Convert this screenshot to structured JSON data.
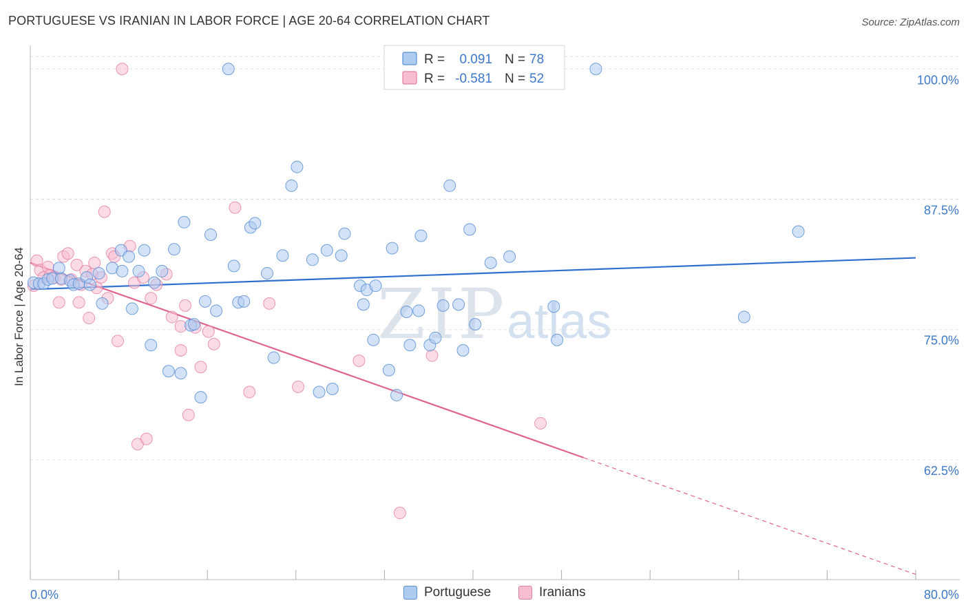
{
  "header": {
    "title": "PORTUGUESE VS IRANIAN IN LABOR FORCE | AGE 20-64 CORRELATION CHART",
    "source": "Source: ZipAtlas.com"
  },
  "watermark": {
    "zip": "ZIP",
    "atlas": "atlas"
  },
  "legend": {
    "rows": [
      {
        "r_label": "R =",
        "r_value": "0.091",
        "n_label": "N =",
        "n_value": "78",
        "color": "#6fa0e0"
      },
      {
        "r_label": "R =",
        "r_value": "-0.581",
        "n_label": "N =",
        "n_value": "52",
        "color": "#f08aab"
      }
    ]
  },
  "colors": {
    "portuguese_fill": "#aecbf0",
    "portuguese_stroke": "#5b8fd6",
    "portuguese_line": "#2f6fd0",
    "iranian_fill": "#f7bdd0",
    "iranian_stroke": "#e67ea1",
    "iranian_line": "#e0628f",
    "axis_text": "#3d78c8",
    "grid": "#dddddd"
  },
  "chart_data": {
    "type": "scatter",
    "title": "PORTUGUESE VS IRANIAN IN LABOR FORCE | AGE 20-64 CORRELATION CHART",
    "xlabel": "",
    "ylabel": "In Labor Force | Age 20-64",
    "xlim": [
      0,
      80
    ],
    "ylim": [
      51.0,
      102.0
    ],
    "x_tick_labels": [
      "0.0%",
      "80.0%"
    ],
    "y_ticks": [
      62.5,
      75.0,
      87.5,
      100.0
    ],
    "y_tick_labels": [
      "62.5%",
      "75.0%",
      "87.5%",
      "100.0%"
    ],
    "grid": true,
    "legend_position": "top-center",
    "series": [
      {
        "name": "Portuguese",
        "r": 0.091,
        "n": 78,
        "trend": {
          "x": [
            0,
            80
          ],
          "y": [
            78.85,
            81.88
          ]
        },
        "points": [
          [
            0.3,
            79.5
          ],
          [
            0.8,
            79.4
          ],
          [
            1.2,
            79.4
          ],
          [
            1.6,
            79.8
          ],
          [
            2.0,
            79.9
          ],
          [
            2.8,
            79.9
          ],
          [
            3.6,
            79.7
          ],
          [
            3.9,
            79.3
          ],
          [
            4.4,
            79.4
          ],
          [
            5.1,
            80.0
          ],
          [
            5.4,
            79.3
          ],
          [
            6.2,
            80.4
          ],
          [
            6.5,
            77.5
          ],
          [
            7.4,
            80.9
          ],
          [
            8.2,
            82.6
          ],
          [
            8.3,
            80.6
          ],
          [
            8.9,
            82.0
          ],
          [
            9.2,
            77.0
          ],
          [
            9.8,
            80.6
          ],
          [
            10.3,
            82.6
          ],
          [
            10.9,
            73.5
          ],
          [
            11.2,
            79.5
          ],
          [
            11.9,
            80.6
          ],
          [
            12.5,
            71.0
          ],
          [
            13.0,
            82.7
          ],
          [
            13.6,
            70.8
          ],
          [
            13.9,
            85.3
          ],
          [
            14.5,
            75.4
          ],
          [
            14.8,
            75.5
          ],
          [
            15.4,
            68.5
          ],
          [
            15.8,
            77.7
          ],
          [
            16.3,
            84.1
          ],
          [
            16.8,
            76.8
          ],
          [
            17.9,
            100.0
          ],
          [
            18.4,
            81.1
          ],
          [
            18.8,
            77.6
          ],
          [
            19.3,
            77.7
          ],
          [
            19.9,
            84.8
          ],
          [
            20.3,
            85.2
          ],
          [
            21.4,
            80.4
          ],
          [
            22.0,
            72.3
          ],
          [
            22.8,
            82.1
          ],
          [
            23.6,
            88.8
          ],
          [
            24.1,
            90.6
          ],
          [
            25.5,
            81.7
          ],
          [
            26.1,
            69.0
          ],
          [
            26.8,
            82.6
          ],
          [
            27.3,
            69.3
          ],
          [
            28.1,
            82.1
          ],
          [
            28.4,
            84.2
          ],
          [
            29.8,
            79.2
          ],
          [
            30.1,
            77.4
          ],
          [
            30.4,
            78.8
          ],
          [
            31.0,
            74.0
          ],
          [
            31.2,
            79.2
          ],
          [
            32.4,
            71.1
          ],
          [
            32.7,
            82.8
          ],
          [
            33.1,
            68.7
          ],
          [
            34.0,
            76.7
          ],
          [
            34.3,
            73.5
          ],
          [
            35.1,
            76.8
          ],
          [
            35.3,
            84.0
          ],
          [
            36.1,
            73.5
          ],
          [
            36.6,
            74.2
          ],
          [
            37.3,
            77.3
          ],
          [
            37.9,
            88.8
          ],
          [
            38.7,
            77.4
          ],
          [
            39.1,
            73.0
          ],
          [
            39.7,
            84.6
          ],
          [
            40.2,
            75.5
          ],
          [
            41.6,
            81.4
          ],
          [
            43.3,
            82.0
          ],
          [
            47.3,
            77.2
          ],
          [
            47.6,
            74.0
          ],
          [
            51.1,
            100.0
          ],
          [
            64.5,
            76.2
          ],
          [
            69.4,
            84.4
          ],
          [
            2.6,
            80.9
          ]
        ]
      },
      {
        "name": "Iranians",
        "r": -0.581,
        "n": 52,
        "trend": {
          "x": [
            0,
            50
          ],
          "y": [
            81.4,
            62.7
          ],
          "dash_x": [
            50,
            80
          ],
          "dash_y": [
            62.7,
            51.5
          ]
        },
        "points": [
          [
            0.3,
            79.2
          ],
          [
            0.6,
            81.6
          ],
          [
            0.9,
            80.7
          ],
          [
            1.2,
            80.0
          ],
          [
            1.6,
            81.0
          ],
          [
            1.8,
            80.2
          ],
          [
            2.2,
            80.0
          ],
          [
            2.6,
            77.6
          ],
          [
            2.8,
            79.8
          ],
          [
            3.0,
            82.0
          ],
          [
            3.4,
            82.3
          ],
          [
            3.7,
            79.8
          ],
          [
            4.2,
            81.2
          ],
          [
            4.4,
            77.6
          ],
          [
            4.6,
            79.3
          ],
          [
            5.0,
            80.6
          ],
          [
            5.3,
            76.1
          ],
          [
            5.6,
            80.3
          ],
          [
            5.8,
            81.4
          ],
          [
            6.0,
            79.0
          ],
          [
            6.4,
            80.0
          ],
          [
            6.7,
            86.3
          ],
          [
            7.0,
            78.0
          ],
          [
            7.4,
            82.3
          ],
          [
            7.6,
            82.0
          ],
          [
            7.9,
            73.9
          ],
          [
            8.3,
            100.0
          ],
          [
            9.0,
            83.0
          ],
          [
            9.4,
            79.5
          ],
          [
            9.7,
            64.0
          ],
          [
            10.2,
            80.0
          ],
          [
            10.5,
            64.5
          ],
          [
            10.9,
            78.0
          ],
          [
            11.4,
            79.3
          ],
          [
            12.3,
            80.3
          ],
          [
            12.8,
            76.2
          ],
          [
            13.6,
            73.0
          ],
          [
            14.0,
            77.3
          ],
          [
            14.3,
            66.8
          ],
          [
            14.9,
            75.2
          ],
          [
            15.4,
            71.4
          ],
          [
            16.1,
            74.8
          ],
          [
            16.6,
            73.6
          ],
          [
            18.5,
            86.7
          ],
          [
            19.8,
            69.0
          ],
          [
            21.6,
            77.5
          ],
          [
            24.2,
            69.5
          ],
          [
            29.7,
            72.0
          ],
          [
            33.4,
            57.4
          ],
          [
            36.3,
            72.5
          ],
          [
            46.1,
            66.0
          ],
          [
            13.6,
            75.3
          ]
        ]
      }
    ]
  },
  "bottom_legend": {
    "portuguese": "Portuguese",
    "iranians": "Iranians"
  }
}
